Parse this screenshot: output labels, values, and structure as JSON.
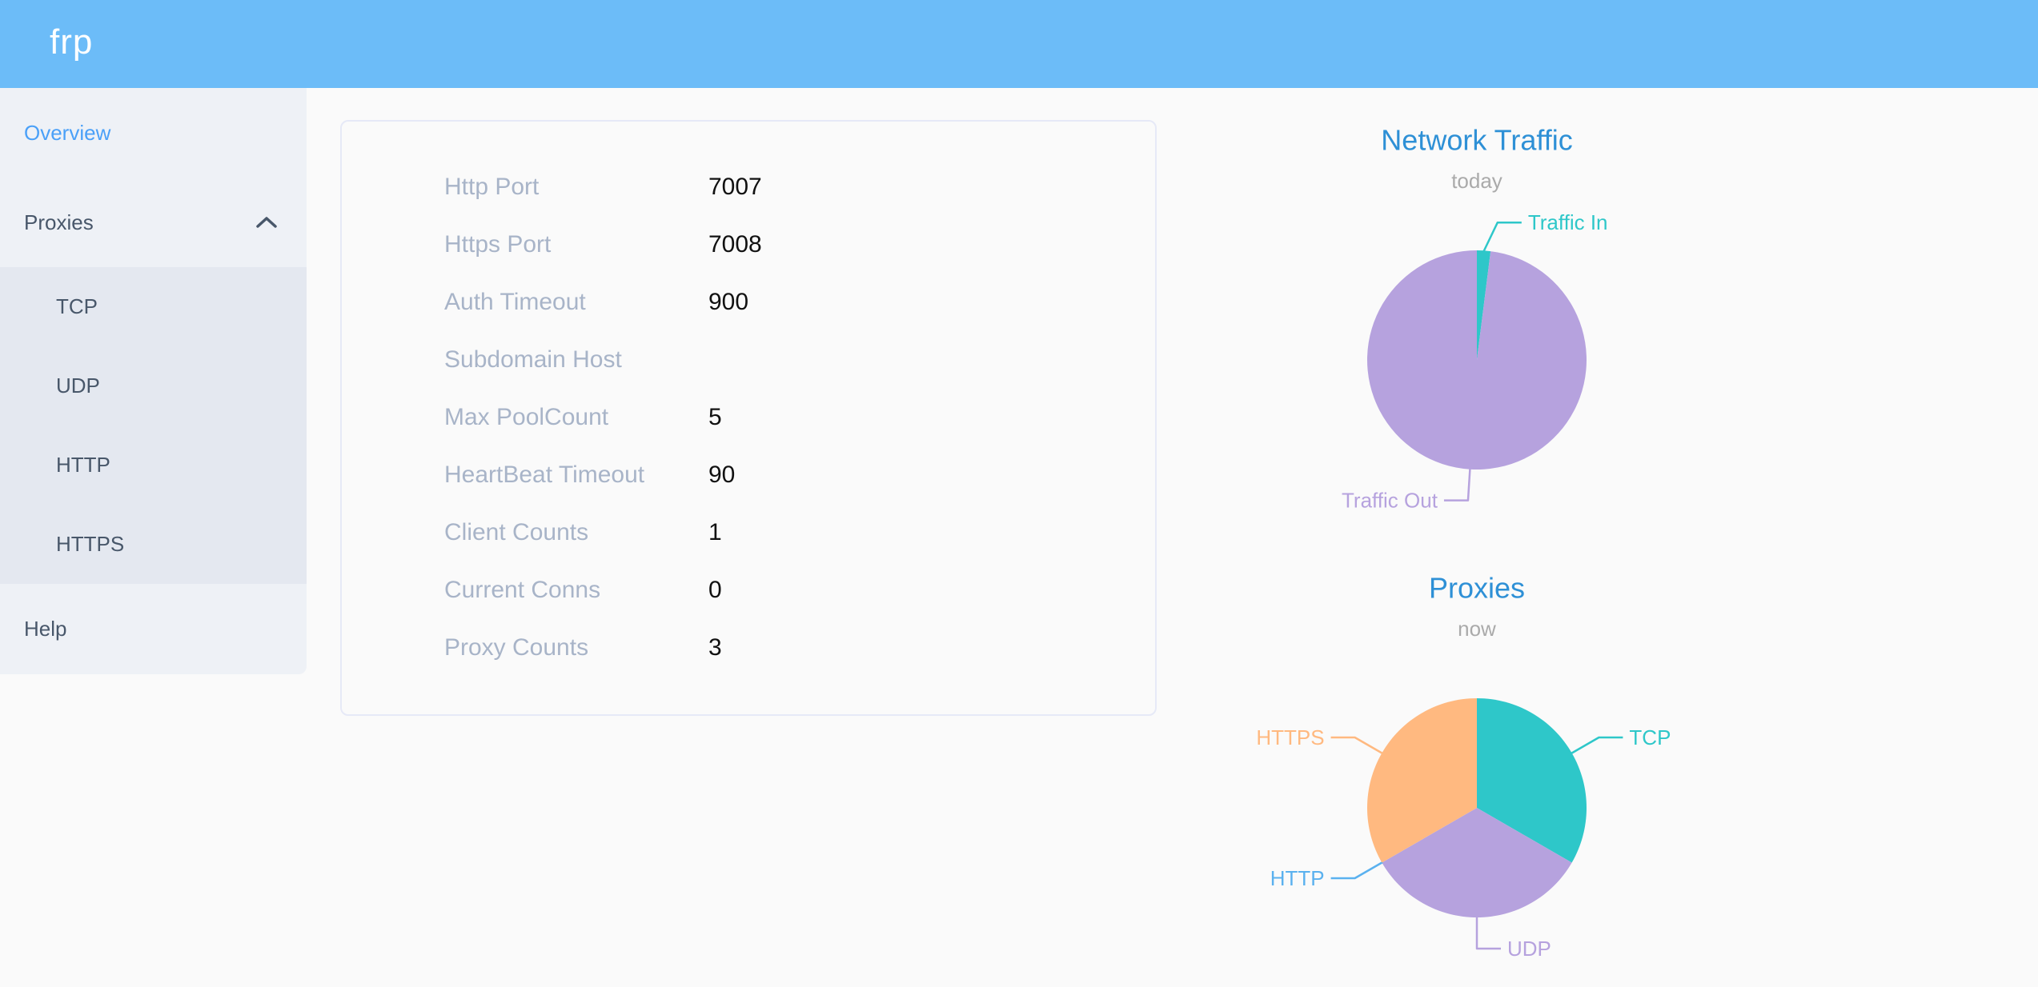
{
  "header": {
    "logo": "frp"
  },
  "sidebar": {
    "overview_label": "Overview",
    "proxies_label": "Proxies",
    "proxies_expanded": true,
    "submenu": [
      "TCP",
      "UDP",
      "HTTP",
      "HTTPS"
    ],
    "help_label": "Help"
  },
  "overview": {
    "rows": [
      {
        "label": "Http Port",
        "value": "7007"
      },
      {
        "label": "Https Port",
        "value": "7008"
      },
      {
        "label": "Auth Timeout",
        "value": "900"
      },
      {
        "label": "Subdomain Host",
        "value": ""
      },
      {
        "label": "Max PoolCount",
        "value": "5"
      },
      {
        "label": "HeartBeat Timeout",
        "value": "90"
      },
      {
        "label": "Client Counts",
        "value": "1"
      },
      {
        "label": "Current Conns",
        "value": "0"
      },
      {
        "label": "Proxy Counts",
        "value": "3"
      }
    ]
  },
  "chart_data": [
    {
      "type": "pie",
      "title": "Network Traffic",
      "subtitle": "today",
      "legend_position": "outside-labels",
      "series": [
        {
          "name": "Traffic In",
          "value": 2,
          "color": "#2ec7c9"
        },
        {
          "name": "Traffic Out",
          "value": 98,
          "color": "#b6a2de"
        }
      ]
    },
    {
      "type": "pie",
      "title": "Proxies",
      "subtitle": "now",
      "legend_position": "outside-labels",
      "series": [
        {
          "name": "TCP",
          "value": 1,
          "color": "#2ec7c9"
        },
        {
          "name": "UDP",
          "value": 1,
          "color": "#b6a2de"
        },
        {
          "name": "HTTP",
          "value": 0,
          "color": "#5ab1ef"
        },
        {
          "name": "HTTPS",
          "value": 1,
          "color": "#ffb980"
        }
      ]
    }
  ],
  "colors": {
    "header_bg": "#6cbcf8",
    "logo_text": "#ffffff",
    "sidebar_bg": "#eef1f6",
    "submenu_bg": "#e4e8f0",
    "menu_text": "#48576a",
    "menu_active": "#4aa0f8",
    "config_label": "#a8b4c8",
    "config_value": "#111111",
    "card_border": "#e6e9f7",
    "page_bg": "#fafafa",
    "chart_title": "#2e90d6",
    "chart_subtitle": "#aaaaaa"
  }
}
